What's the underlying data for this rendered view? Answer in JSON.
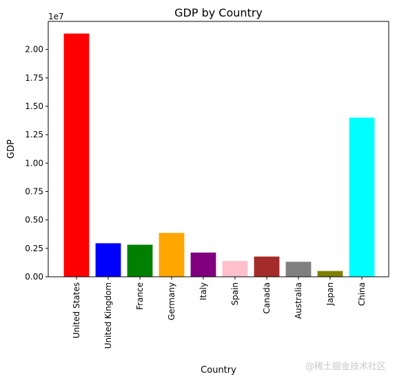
{
  "chart_data": {
    "type": "bar",
    "title": "GDP by Country",
    "xlabel": "Country",
    "ylabel": "GDP",
    "y_offset_label": "1e7",
    "categories": [
      "United States",
      "United Kingdom",
      "France",
      "Germany",
      "Italy",
      "Spain",
      "Canada",
      "Australia",
      "Japan",
      "China"
    ],
    "values": [
      21400000,
      2950000,
      2820000,
      3860000,
      2130000,
      1390000,
      1780000,
      1320000,
      510000,
      14000000
    ],
    "colors": [
      "#ff0000",
      "#0000ff",
      "#008000",
      "#ffa500",
      "#800080",
      "#ffc0cb",
      "#a52a2a",
      "#808080",
      "#808000",
      "#00ffff"
    ],
    "yticks": [
      0,
      2500000,
      5000000,
      7500000,
      10000000,
      12500000,
      15000000,
      17500000,
      20000000
    ],
    "ytick_labels": [
      "0.00",
      "0.25",
      "0.50",
      "0.75",
      "1.00",
      "1.25",
      "1.50",
      "1.75",
      "2.00"
    ],
    "ylim": [
      0,
      22470000
    ],
    "grid": false,
    "legend": "none"
  },
  "watermark": "@稀土掘金技术社区"
}
